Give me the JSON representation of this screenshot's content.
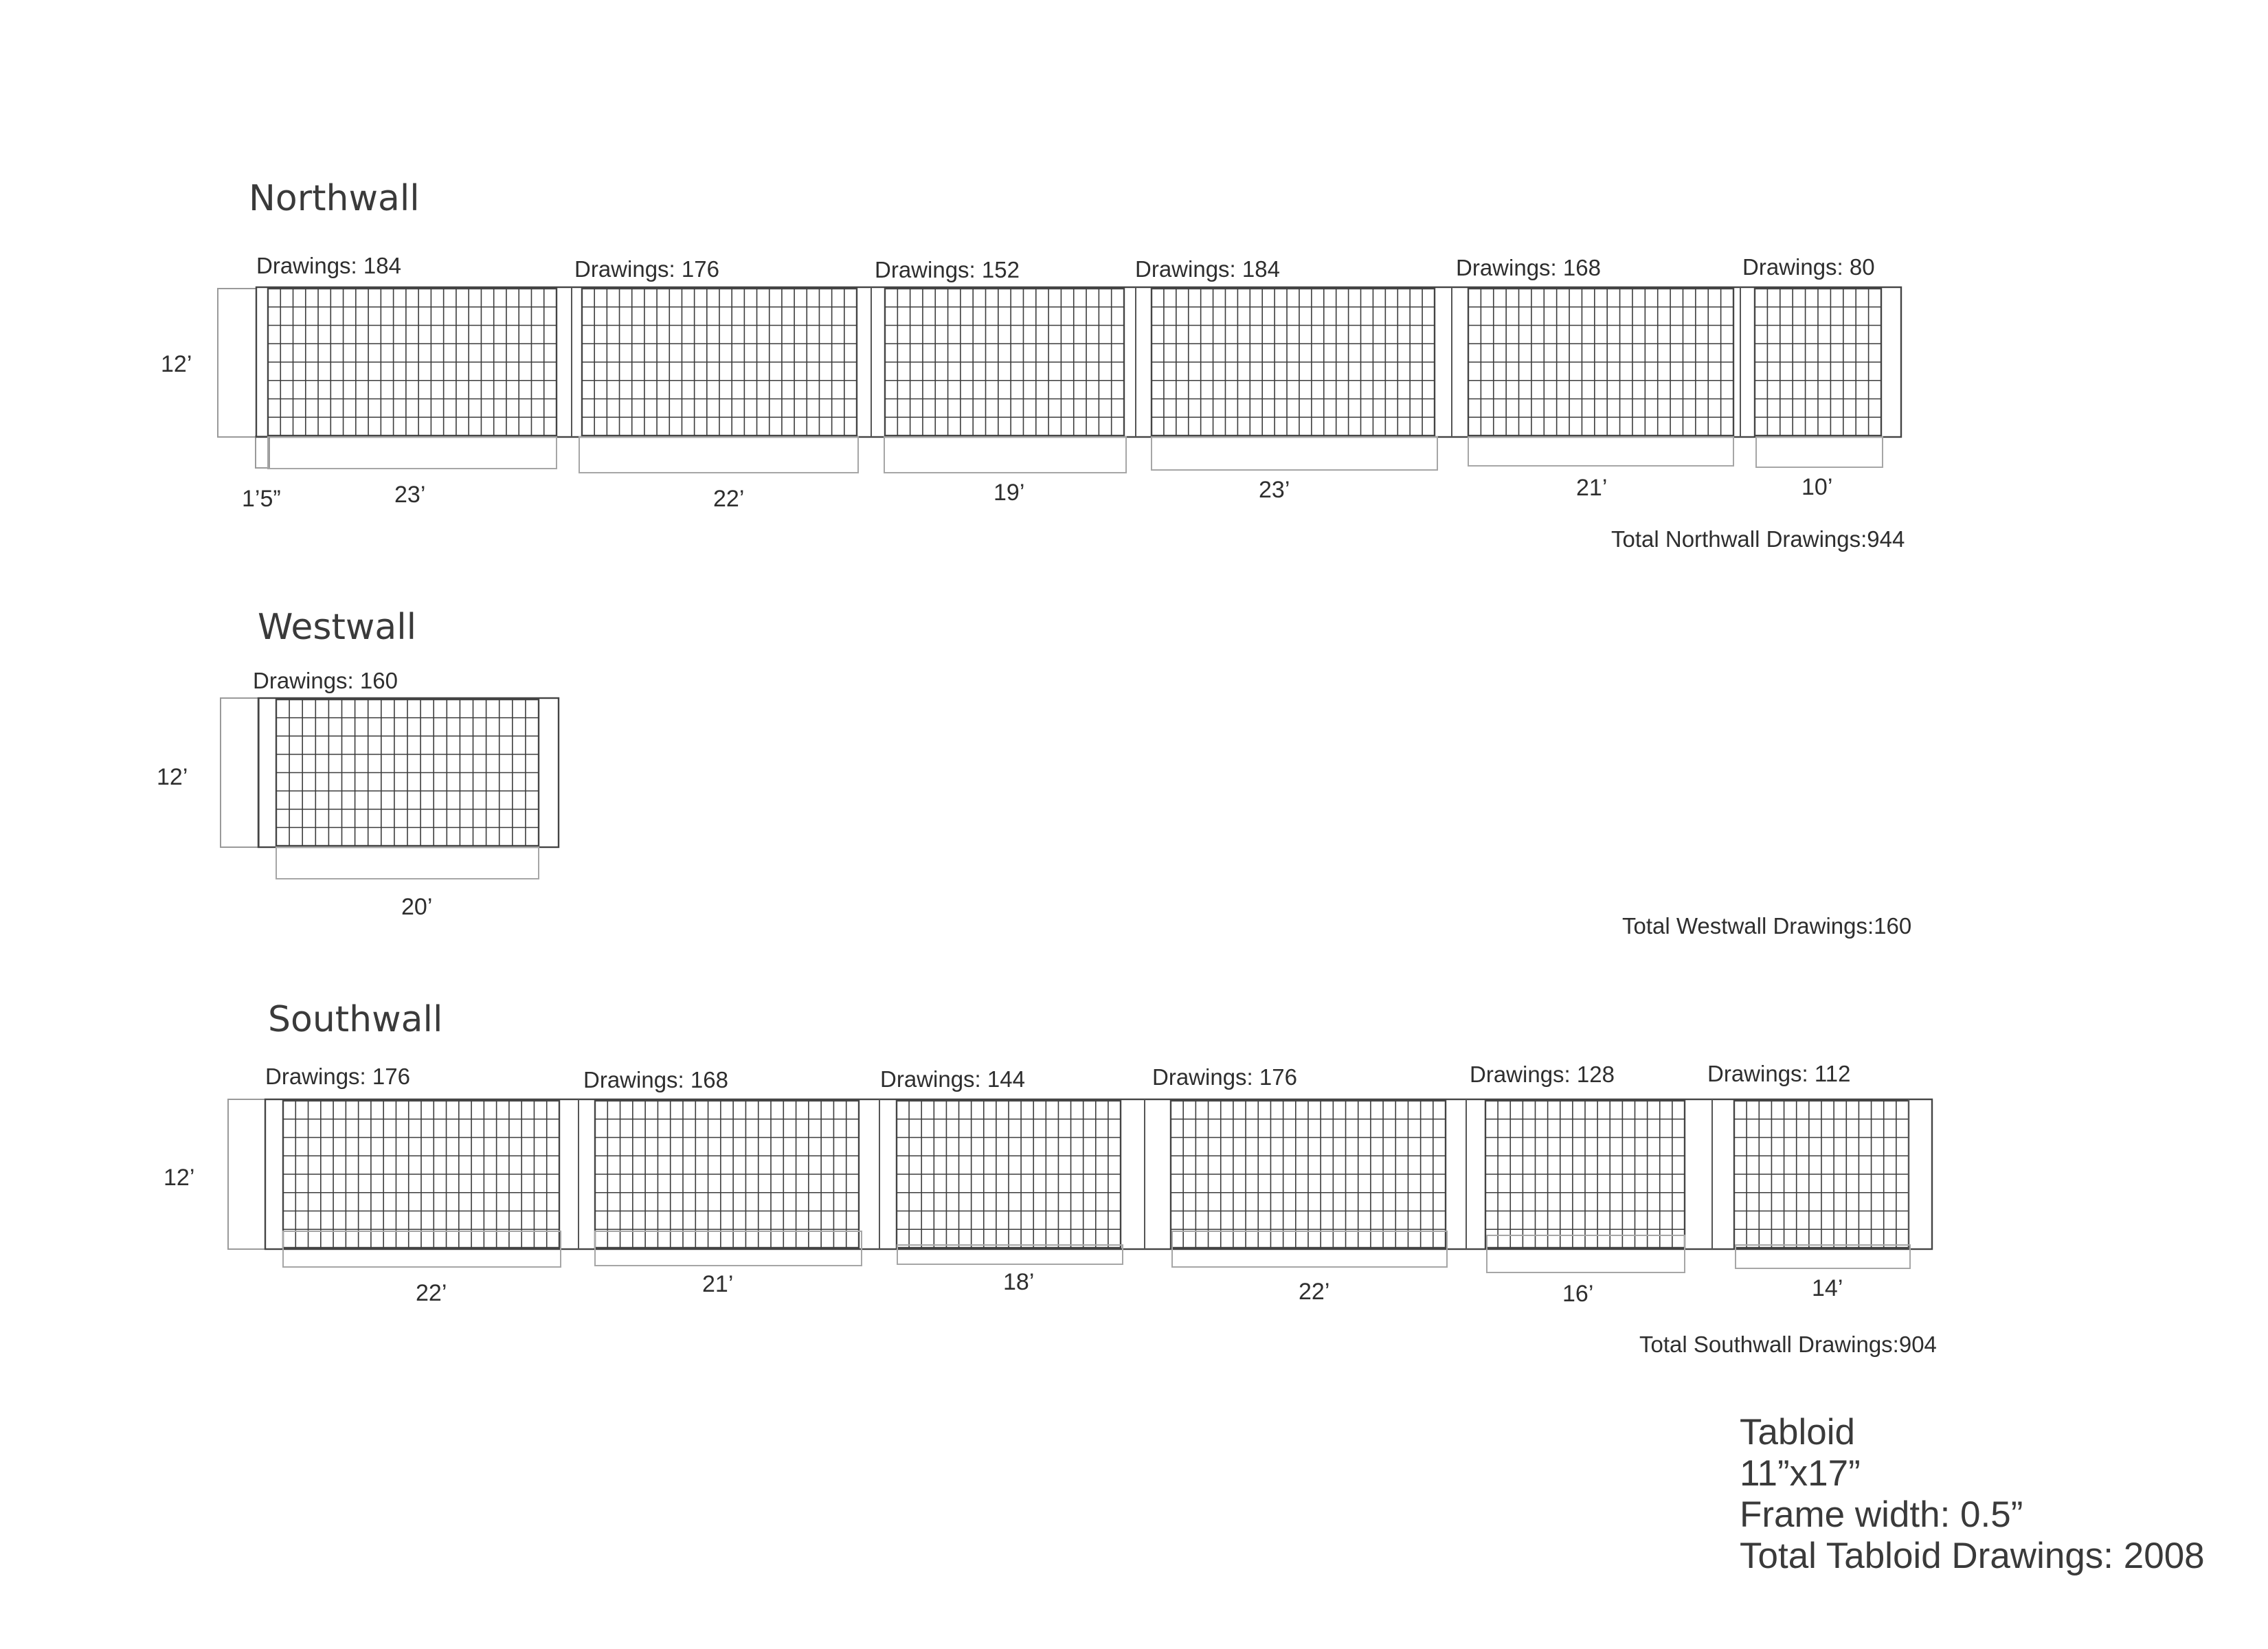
{
  "walls": [
    {
      "name": "Northwall",
      "height_label": "12’",
      "offset_label": "1’5”",
      "total_label": "Total Northwall Drawings:944",
      "sections": [
        {
          "label": "Drawings: 184",
          "count": 184,
          "width_label": "23’"
        },
        {
          "label": "Drawings: 176",
          "count": 176,
          "width_label": "22’"
        },
        {
          "label": "Drawings: 152",
          "count": 152,
          "width_label": "19’"
        },
        {
          "label": "Drawings: 184",
          "count": 184,
          "width_label": "23’"
        },
        {
          "label": "Drawings: 168",
          "count": 168,
          "width_label": "21’"
        },
        {
          "label": "Drawings: 80",
          "count": 80,
          "width_label": "10’"
        }
      ]
    },
    {
      "name": "Westwall",
      "height_label": "12’",
      "total_label": "Total Westwall Drawings:160",
      "sections": [
        {
          "label": "Drawings: 160",
          "count": 160,
          "width_label": "20’"
        }
      ]
    },
    {
      "name": "Southwall",
      "height_label": "12’",
      "total_label": "Total Southwall Drawings:904",
      "sections": [
        {
          "label": "Drawings: 176",
          "count": 176,
          "width_label": "22’"
        },
        {
          "label": "Drawings: 168",
          "count": 168,
          "width_label": "21’"
        },
        {
          "label": "Drawings: 144",
          "count": 144,
          "width_label": "18’"
        },
        {
          "label": "Drawings: 176",
          "count": 176,
          "width_label": "22’"
        },
        {
          "label": "Drawings: 128",
          "count": 128,
          "width_label": "16’"
        },
        {
          "label": "Drawings: 112",
          "count": 112,
          "width_label": "14’"
        }
      ]
    }
  ],
  "info": {
    "format": "Tabloid",
    "size": "11”x17”",
    "frame_width": "Frame width: 0.5”",
    "total": "Total Tabloid Drawings: 2008"
  }
}
